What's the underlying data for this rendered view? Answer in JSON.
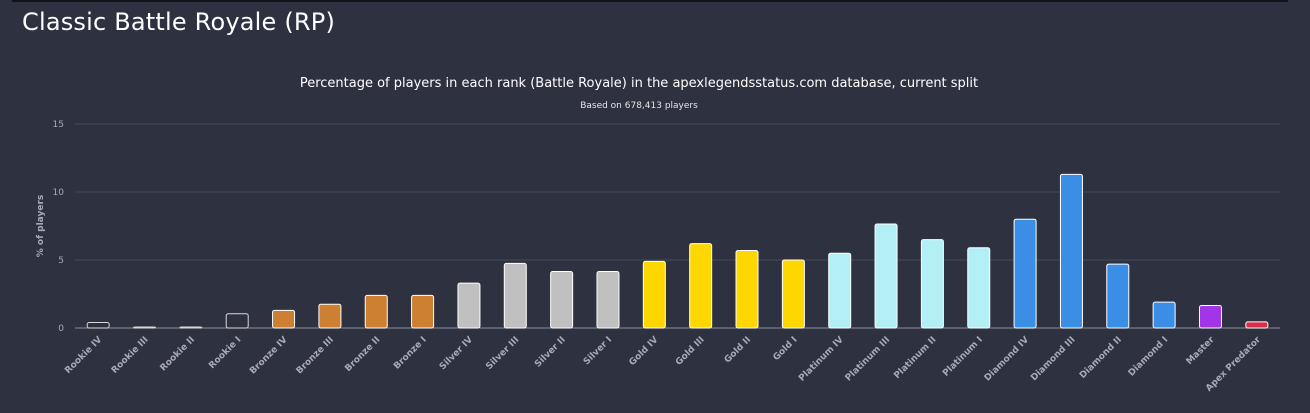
{
  "page": {
    "title": "Classic Battle Royale (RP)"
  },
  "chart_data": {
    "type": "bar",
    "title": "Percentage of players in each rank (Battle Royale) in the apexlegendsstatus.com database, current split",
    "subtitle": "Based on 678,413 players",
    "xlabel": "",
    "ylabel": "% of players",
    "ylim": [
      0,
      15
    ],
    "yticks": [
      0,
      5,
      10,
      15
    ],
    "grid": true,
    "categories": [
      "Rookie IV",
      "Rookie III",
      "Rookie II",
      "Rookie I",
      "Bronze IV",
      "Bronze III",
      "Bronze II",
      "Bronze I",
      "Silver IV",
      "Silver III",
      "Silver II",
      "Silver I",
      "Gold IV",
      "Gold III",
      "Gold II",
      "Gold I",
      "Platinum IV",
      "Platinum III",
      "Platinum II",
      "Platinum I",
      "Diamond IV",
      "Diamond III",
      "Diamond II",
      "Diamond I",
      "Master",
      "Apex Predator"
    ],
    "values": [
      0.4,
      0.05,
      0.05,
      1.05,
      1.3,
      1.75,
      2.4,
      2.4,
      3.3,
      4.75,
      4.15,
      4.15,
      4.9,
      6.2,
      5.7,
      5.0,
      5.5,
      7.65,
      6.5,
      5.9,
      8.0,
      11.3,
      4.7,
      1.9,
      1.65,
      0.45
    ],
    "colors": [
      "#2e3240",
      "#2e3240",
      "#2e3240",
      "#2e3240",
      "#cd7f32",
      "#cd7f32",
      "#cd7f32",
      "#cd7f32",
      "#c0c0c0",
      "#c0c0c0",
      "#c0c0c0",
      "#c0c0c0",
      "#ffd700",
      "#ffd700",
      "#ffd700",
      "#ffd700",
      "#b2f0f6",
      "#b2f0f6",
      "#b2f0f6",
      "#b2f0f6",
      "#3a8ee6",
      "#3a8ee6",
      "#3a8ee6",
      "#3a8ee6",
      "#a335e8",
      "#dc2d46"
    ],
    "stroke_colors": [
      "#d9d9d9",
      "#d9d9d9",
      "#d9d9d9",
      "#d9d9d9",
      "#ffffff",
      "#ffffff",
      "#ffffff",
      "#ffffff",
      "#ffffff",
      "#ffffff",
      "#ffffff",
      "#ffffff",
      "#ffffff",
      "#ffffff",
      "#ffffff",
      "#ffffff",
      "#ffffff",
      "#ffffff",
      "#ffffff",
      "#ffffff",
      "#ffffff",
      "#ffffff",
      "#ffffff",
      "#ffffff",
      "#ffffff",
      "#ffffff"
    ]
  }
}
